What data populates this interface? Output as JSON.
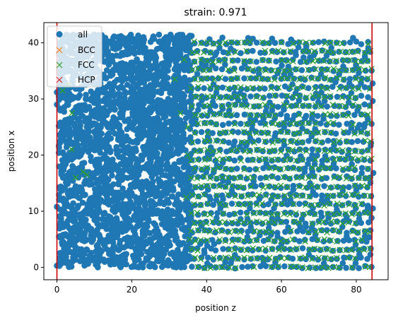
{
  "chart_data": {
    "type": "scatter",
    "title": "strain: 0.971",
    "xlabel": "position z",
    "ylabel": "position x",
    "xlim": [
      -3.5,
      88.5
    ],
    "ylim": [
      -2.2,
      43.6
    ],
    "xticks": [
      0,
      20,
      40,
      60,
      80
    ],
    "yticks": [
      0,
      10,
      20,
      30,
      40
    ],
    "vlines": [
      {
        "x": 0,
        "color": "#cc0000"
      },
      {
        "x": 84.2,
        "color": "#cc0000"
      }
    ],
    "legend": {
      "placement": "top-left",
      "entries": [
        {
          "label": "all",
          "marker": "circle",
          "color": "#1f77b4"
        },
        {
          "label": "BCC",
          "marker": "x",
          "color": "#ff7f0e"
        },
        {
          "label": "FCC",
          "marker": "x",
          "color": "#2ca02c"
        },
        {
          "label": "HCP",
          "marker": "x",
          "color": "#d62728"
        }
      ]
    },
    "series_points_note": "",
    "all": {
      "disordered_region": {
        "z_range": [
          0.5,
          36
        ],
        "x_range": [
          0,
          41.5
        ]
      },
      "crystal_region": {
        "z_range": [
          36,
          84
        ],
        "x_range": [
          0,
          41
        ],
        "row_spacing": 1.6,
        "col_spacing": 1.65
      }
    },
    "fcc": {
      "crystal_region": {
        "z_range": [
          36,
          84
        ],
        "x_range": [
          0,
          41
        ]
      },
      "sparse_points": [
        [
          1.5,
          31.5
        ],
        [
          3,
          32.5
        ],
        [
          4,
          21
        ],
        [
          4,
          27.5
        ],
        [
          5,
          16
        ],
        [
          7,
          17
        ],
        [
          8,
          16.5
        ],
        [
          31.5,
          33.5
        ],
        [
          33,
          27.5
        ],
        [
          34,
          37
        ],
        [
          35,
          20
        ],
        [
          35,
          25
        ],
        [
          34.5,
          12.5
        ],
        [
          35.5,
          5
        ]
      ]
    },
    "colors": {
      "all": "#1f77b4",
      "fcc": "#2ca02c",
      "vline": "#cc0000"
    }
  }
}
